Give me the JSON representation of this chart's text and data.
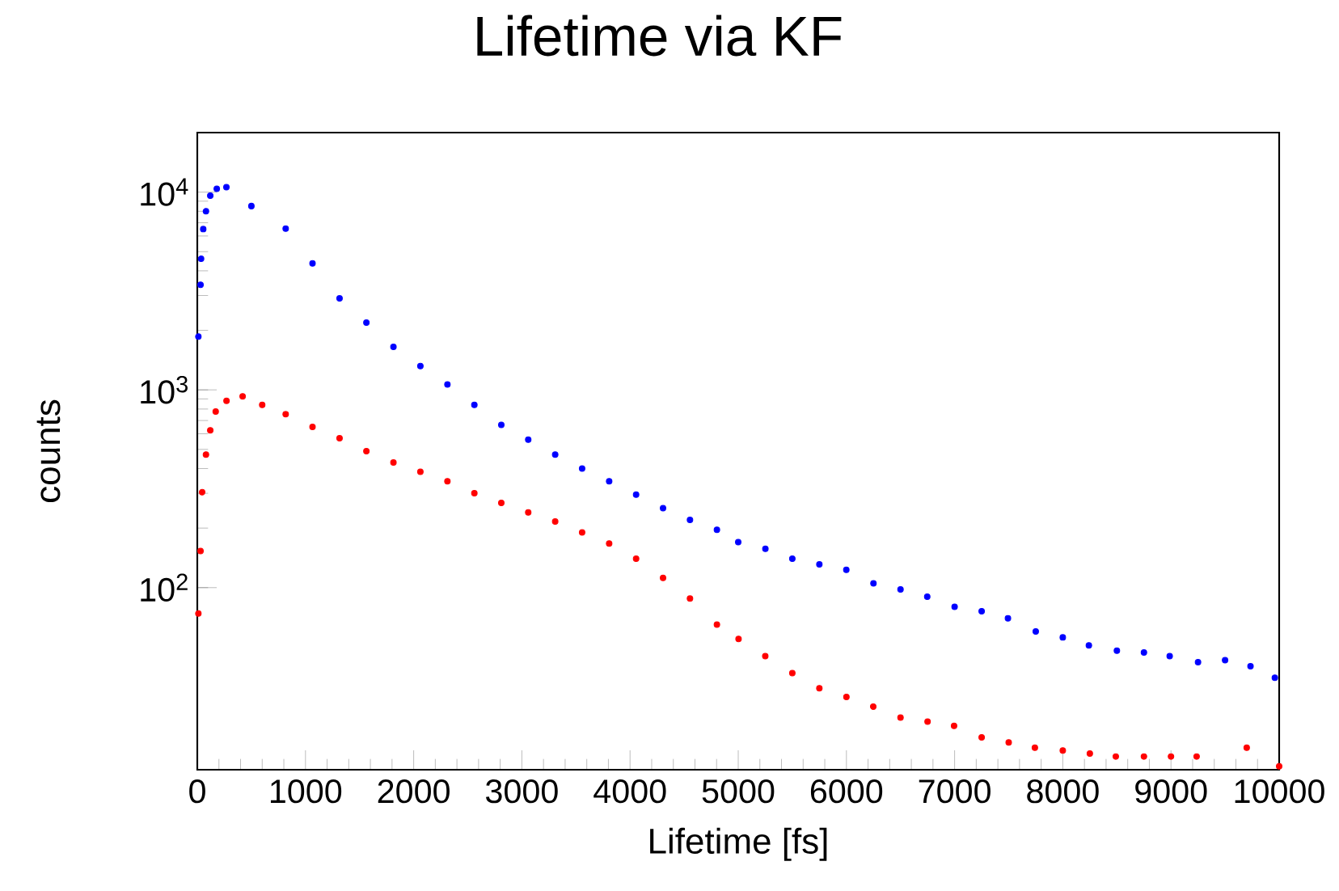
{
  "chart_data": {
    "type": "scatter",
    "title": "Lifetime via KF",
    "xlabel": "Lifetime [fs]",
    "ylabel": "counts",
    "log": "y",
    "marker": "circle",
    "xlim": [
      0,
      10000
    ],
    "ylim": [
      12,
      20000
    ],
    "xticks": [
      0,
      1000,
      2000,
      3000,
      4000,
      5000,
      6000,
      7000,
      8000,
      9000,
      10000
    ],
    "yticks": [
      {
        "value": 100,
        "label": "10$^{2}$"
      },
      {
        "value": 1000,
        "label": "10$^{3}$"
      },
      {
        "value": 10000,
        "label": "10$^{4}$"
      }
    ],
    "series": [
      {
        "color": "#0000ff",
        "x": [
          10,
          30,
          35,
          55,
          80,
          120,
          180,
          269,
          500,
          817,
          1065,
          1315,
          1563,
          1813,
          2062,
          2312,
          2561,
          2810,
          3059,
          3308,
          3557,
          3807,
          4056,
          4305,
          4554,
          4803,
          5000,
          5251,
          5500,
          5750,
          5999,
          6250,
          6500,
          6747,
          7000,
          7250,
          7493,
          7750,
          8000,
          8241,
          8500,
          8750,
          8988,
          9250,
          9500,
          9735,
          9960
        ],
        "values": [
          1860,
          3400,
          4600,
          6500,
          8000,
          9600,
          10400,
          10600,
          8500,
          6540,
          4360,
          2900,
          2190,
          1650,
          1320,
          1065,
          840,
          665,
          560,
          471,
          400,
          345,
          295,
          252,
          220,
          196,
          170,
          157,
          140,
          131,
          123,
          105,
          98,
          90,
          80,
          76,
          70,
          60,
          56,
          51,
          48,
          47,
          45,
          42,
          43,
          40,
          35
        ]
      },
      {
        "color": "#ff0000",
        "x": [
          10,
          30,
          45,
          80,
          120,
          170,
          270,
          419,
          600,
          817,
          1065,
          1315,
          1563,
          1813,
          2062,
          2312,
          2561,
          2810,
          3059,
          3308,
          3557,
          3807,
          4056,
          4305,
          4554,
          4803,
          5003,
          5250,
          5500,
          5750,
          6000,
          6248,
          6500,
          6750,
          6995,
          7250,
          7500,
          7742,
          8000,
          8250,
          8490,
          8750,
          9000,
          9237,
          9700,
          10000
        ],
        "values": [
          74,
          153,
          304,
          471,
          624,
          778,
          881,
          927,
          840,
          753,
          650,
          569,
          490,
          429,
          385,
          345,
          300,
          268,
          240,
          216,
          190,
          167,
          140,
          112,
          88,
          65,
          55,
          45,
          37,
          31,
          28,
          25,
          22,
          21,
          20,
          17.5,
          16.5,
          15.5,
          15,
          14.5,
          14,
          14,
          14,
          14,
          15.5,
          12.5
        ]
      }
    ]
  }
}
